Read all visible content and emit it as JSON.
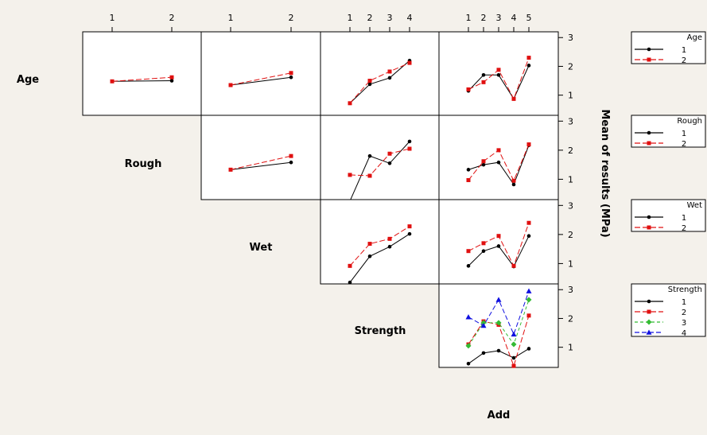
{
  "chart_data": {
    "type": "line",
    "title": "",
    "ylabel": "Mean of results (MPa)",
    "ylim": [
      0.3,
      3.2
    ],
    "yticks": [
      1,
      2,
      3
    ],
    "factors": [
      {
        "name": "Age",
        "levels": [
          "1",
          "2"
        ]
      },
      {
        "name": "Rough",
        "levels": [
          "1",
          "2"
        ]
      },
      {
        "name": "Wet",
        "levels": [
          "1",
          "2"
        ]
      },
      {
        "name": "Strength",
        "levels": [
          "1",
          "2",
          "3",
          "4"
        ]
      },
      {
        "name": "Add",
        "levels": [
          "1",
          "2",
          "3",
          "4",
          "5"
        ]
      }
    ],
    "panels": [
      {
        "trace": "Age",
        "x": "Rough",
        "series": [
          [
            1.48,
            1.5
          ],
          [
            1.48,
            1.62
          ]
        ]
      },
      {
        "trace": "Age",
        "x": "Wet",
        "series": [
          [
            1.35,
            1.62
          ],
          [
            1.35,
            1.77
          ]
        ]
      },
      {
        "trace": "Age",
        "x": "Strength",
        "series": [
          [
            0.72,
            1.38,
            1.6,
            2.2
          ],
          [
            0.72,
            1.5,
            1.82,
            2.12
          ]
        ]
      },
      {
        "trace": "Age",
        "x": "Add",
        "series": [
          [
            1.15,
            1.7,
            1.7,
            0.87,
            2.03
          ],
          [
            1.2,
            1.45,
            1.88,
            0.87,
            2.3
          ]
        ]
      },
      {
        "trace": "Rough",
        "x": "Wet",
        "series": [
          [
            1.33,
            1.58
          ],
          [
            1.33,
            1.8
          ]
        ]
      },
      {
        "trace": "Rough",
        "x": "Strength",
        "series": [
          [
            0.25,
            1.8,
            1.55,
            2.3
          ],
          [
            1.15,
            1.12,
            1.88,
            2.05
          ]
        ]
      },
      {
        "trace": "Rough",
        "x": "Add",
        "series": [
          [
            1.33,
            1.5,
            1.58,
            0.82,
            2.17
          ],
          [
            0.97,
            1.62,
            2.0,
            0.95,
            2.2
          ]
        ]
      },
      {
        "trace": "Wet",
        "x": "Strength",
        "series": [
          [
            0.35,
            1.25,
            1.58,
            2.02
          ],
          [
            0.92,
            1.68,
            1.85,
            2.28
          ]
        ]
      },
      {
        "trace": "Wet",
        "x": "Add",
        "series": [
          [
            0.92,
            1.43,
            1.6,
            0.9,
            1.95
          ],
          [
            1.43,
            1.7,
            1.95,
            0.92,
            2.4
          ]
        ]
      },
      {
        "trace": "Strength",
        "x": "Add",
        "series": [
          [
            0.43,
            0.8,
            0.88,
            0.63,
            0.95
          ],
          [
            1.1,
            1.9,
            1.78,
            0.35,
            2.1
          ],
          [
            1.05,
            1.85,
            1.85,
            1.1,
            2.65
          ],
          [
            2.05,
            1.75,
            2.65,
            1.45,
            2.95
          ]
        ]
      }
    ],
    "legends": [
      {
        "title": "Age",
        "entries": [
          "1",
          "2"
        ]
      },
      {
        "title": "Rough",
        "entries": [
          "1",
          "2"
        ]
      },
      {
        "title": "Wet",
        "entries": [
          "1",
          "2"
        ]
      },
      {
        "title": "Strength",
        "entries": [
          "1",
          "2",
          "3",
          "4"
        ]
      }
    ],
    "series_styles": [
      {
        "color": "#000000",
        "marker": "circle",
        "dash": ""
      },
      {
        "color": "#e01010",
        "marker": "square",
        "dash": "7,3"
      },
      {
        "color": "#33bb33",
        "marker": "diamond",
        "dash": "4,3"
      },
      {
        "color": "#1010e0",
        "marker": "triangle",
        "dash": "6,3"
      }
    ]
  }
}
